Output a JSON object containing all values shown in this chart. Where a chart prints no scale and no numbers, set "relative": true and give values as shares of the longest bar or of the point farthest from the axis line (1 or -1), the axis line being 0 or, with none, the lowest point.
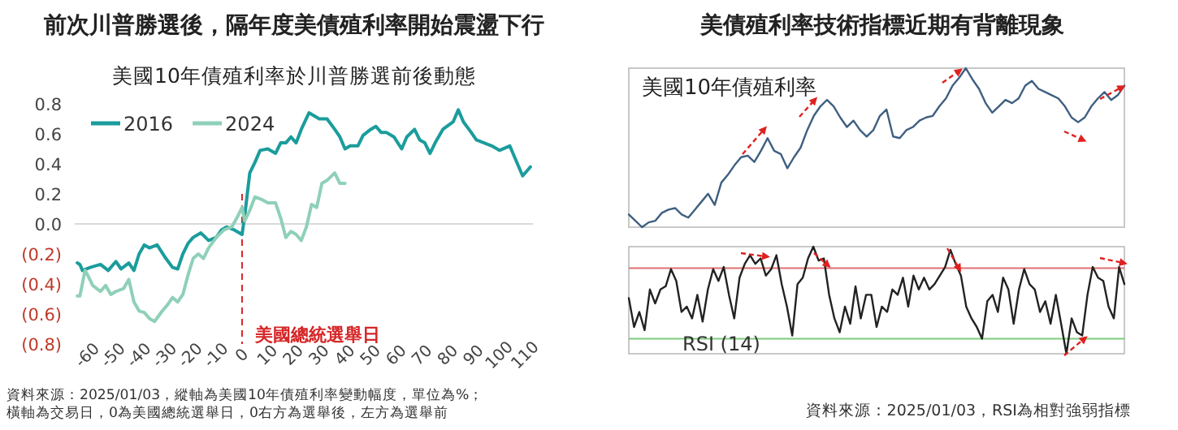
{
  "chart_data": [
    {
      "type": "line",
      "title": "前次川普勝選後，隔年度美債殖利率開始震盪下行",
      "subtitle": "美國10年債殖利率於川普勝選前後動態",
      "xlim": [
        -65,
        113
      ],
      "xticks": [
        -60,
        -50,
        -40,
        -30,
        -20,
        -10,
        0,
        10,
        20,
        30,
        40,
        50,
        60,
        70,
        80,
        90,
        100,
        110
      ],
      "ylim": [
        -0.8,
        0.8
      ],
      "yticks": [
        {
          "value": -0.8,
          "label": "(0.8)"
        },
        {
          "value": -0.6,
          "label": "(0.6)"
        },
        {
          "value": -0.4,
          "label": "(0.4)"
        },
        {
          "value": -0.2,
          "label": "(0.2)"
        },
        {
          "value": 0,
          "label": "0.0"
        },
        {
          "value": 0.2,
          "label": "0.2"
        },
        {
          "value": 0.4,
          "label": "0.4"
        },
        {
          "value": 0.6,
          "label": "0.6"
        },
        {
          "value": 0.8,
          "label": "0.8"
        }
      ],
      "legend": "top left",
      "series": [
        {
          "name": "2016",
          "color": "#1b9c9c",
          "x": [
            -64,
            -63,
            -62,
            -59,
            -55,
            -52,
            -49,
            -47,
            -44,
            -42,
            -40,
            -38,
            -36,
            -33,
            -30,
            -27,
            -25,
            -23,
            -21,
            -19,
            -16,
            -13,
            -10,
            -8,
            -6,
            -3,
            0,
            1,
            3,
            5,
            7,
            10,
            13,
            15,
            17,
            19,
            21,
            23,
            26,
            28,
            30,
            33,
            36,
            38,
            40,
            42,
            45,
            47,
            50,
            52,
            54,
            56,
            59,
            62,
            64,
            67,
            69,
            71,
            73,
            75,
            78,
            82,
            84,
            86,
            89,
            91,
            94,
            97,
            100,
            104,
            107,
            109,
            112
          ],
          "values": [
            -0.26,
            -0.27,
            -0.31,
            -0.29,
            -0.27,
            -0.31,
            -0.25,
            -0.3,
            -0.26,
            -0.31,
            -0.2,
            -0.14,
            -0.16,
            -0.14,
            -0.22,
            -0.29,
            -0.3,
            -0.2,
            -0.13,
            -0.09,
            -0.06,
            -0.11,
            -0.09,
            -0.04,
            -0.02,
            -0.04,
            -0.07,
            0.05,
            0.34,
            0.41,
            0.49,
            0.5,
            0.47,
            0.54,
            0.54,
            0.58,
            0.54,
            0.63,
            0.74,
            0.72,
            0.7,
            0.7,
            0.63,
            0.58,
            0.5,
            0.52,
            0.52,
            0.59,
            0.63,
            0.65,
            0.61,
            0.61,
            0.58,
            0.5,
            0.58,
            0.63,
            0.56,
            0.54,
            0.47,
            0.54,
            0.63,
            0.68,
            0.76,
            0.68,
            0.61,
            0.56,
            0.54,
            0.52,
            0.49,
            0.52,
            0.4,
            0.32,
            0.38
          ]
        },
        {
          "name": "2024",
          "color": "#8fd0b8",
          "x": [
            -64,
            -63,
            -61,
            -60,
            -58,
            -55,
            -53,
            -51,
            -49,
            -46,
            -44,
            -42,
            -40,
            -38,
            -36,
            -34,
            -31,
            -29,
            -27,
            -25,
            -23,
            -21,
            -19,
            -17,
            -15,
            -13,
            -10,
            -7,
            -4,
            -2,
            0,
            1,
            3,
            5,
            8,
            10,
            13,
            15,
            17,
            19,
            21,
            23,
            25,
            27,
            29,
            31,
            33,
            36,
            38,
            40
          ],
          "values": [
            -0.48,
            -0.48,
            -0.31,
            -0.34,
            -0.41,
            -0.45,
            -0.41,
            -0.47,
            -0.45,
            -0.43,
            -0.37,
            -0.52,
            -0.58,
            -0.59,
            -0.63,
            -0.65,
            -0.58,
            -0.54,
            -0.49,
            -0.52,
            -0.47,
            -0.34,
            -0.23,
            -0.2,
            -0.23,
            -0.16,
            -0.09,
            -0.04,
            -0.02,
            0.04,
            0.11,
            0.02,
            0.09,
            0.18,
            0.16,
            0.14,
            0.14,
            0.04,
            -0.09,
            -0.05,
            -0.07,
            -0.11,
            -0.02,
            0.13,
            0.11,
            0.27,
            0.29,
            0.34,
            0.27,
            0.27
          ]
        }
      ],
      "ref_lines": [
        {
          "axis": "y",
          "value": 0,
          "color": "#d9d9d9"
        },
        {
          "axis": "x",
          "value": 0,
          "label": "美國總統選舉日",
          "color": "#d62728",
          "line_style": "dashed"
        }
      ],
      "annotations": [
        "資料來源：2025/01/03，縱軸為美國10年債殖利率變動幅度，單位為%；橫軸為交易日，0為美國總統選舉日，0右方為選舉後，左方為選舉前"
      ]
    },
    {
      "type": "line",
      "title": "美債殖利率技術指標近期有背離現象",
      "relative": true,
      "categories": [
        null,
        null,
        null,
        null,
        null,
        null,
        null,
        null,
        null,
        null,
        null,
        null,
        null,
        null,
        null,
        null,
        null,
        null,
        null,
        null,
        null,
        null,
        null,
        null,
        null,
        null,
        null,
        null,
        null,
        null,
        null,
        null,
        null,
        null,
        null,
        null,
        null,
        null,
        null,
        null,
        null,
        null,
        null,
        null,
        null,
        null,
        null,
        null,
        null,
        null,
        null,
        null,
        null,
        null,
        null,
        null,
        null,
        null,
        null,
        null,
        null,
        null,
        null,
        null,
        null,
        null,
        null,
        null,
        null,
        null,
        null,
        null,
        null,
        null,
        null,
        null
      ],
      "series": [
        {
          "color": "#3e5f80",
          "values": [
            0.08,
            0.04,
            0,
            0.03,
            0.04,
            0.09,
            0.11,
            0.12,
            0.08,
            0.06,
            0.11,
            0.16,
            0.21,
            0.14,
            0.28,
            0.33,
            0.39,
            0.44,
            0.45,
            0.41,
            0.48,
            0.56,
            0.48,
            0.46,
            0.37,
            0.44,
            0.5,
            0.61,
            0.7,
            0.76,
            0.8,
            0.76,
            0.69,
            0.63,
            0.67,
            0.61,
            0.57,
            0.61,
            0.7,
            0.74,
            0.57,
            0.56,
            0.61,
            0.63,
            0.67,
            0.69,
            0.7,
            0.76,
            0.81,
            0.89,
            0.94,
            1,
            0.93,
            0.87,
            0.78,
            0.72,
            0.76,
            0.8,
            0.78,
            0.81,
            0.89,
            0.92,
            0.87,
            0.85,
            0.83,
            0.81,
            0.76,
            0.69,
            0.66,
            0.69,
            0.76,
            0.81,
            0.85,
            0.8,
            0.83,
            0.89
          ]
        }
      ],
      "annotations": [
        "美國10年債殖利率"
      ]
    },
    {
      "type": "line",
      "relative": true,
      "categories": [
        null,
        null,
        null,
        null,
        null,
        null,
        null,
        null,
        null,
        null,
        null,
        null,
        null,
        null,
        null,
        null,
        null,
        null,
        null,
        null,
        null,
        null,
        null,
        null,
        null,
        null,
        null,
        null,
        null,
        null,
        null,
        null,
        null,
        null,
        null,
        null,
        null,
        null,
        null,
        null,
        null,
        null,
        null,
        null,
        null,
        null,
        null,
        null,
        null,
        null,
        null,
        null,
        null,
        null,
        null,
        null,
        null,
        null,
        null,
        null,
        null,
        null,
        null,
        null,
        null,
        null,
        null,
        null,
        null,
        null,
        null,
        null,
        null,
        null,
        null,
        null,
        null,
        null,
        null,
        null,
        null,
        null,
        null,
        null,
        null,
        null,
        null,
        null,
        null,
        null,
        null,
        null,
        null,
        null,
        null
      ],
      "series": [
        {
          "color": "#222222",
          "values": [
            0.52,
            0.25,
            0.39,
            0.22,
            0.6,
            0.47,
            0.6,
            0.63,
            0.79,
            0.68,
            0.39,
            0.44,
            0.33,
            0.55,
            0.3,
            0.6,
            0.79,
            0.68,
            0.81,
            0.55,
            0.33,
            0.71,
            0.84,
            0.92,
            0.84,
            0.89,
            0.73,
            0.79,
            0.92,
            0.65,
            0.44,
            0.17,
            0.65,
            0.71,
            0.89,
            1,
            0.87,
            0.89,
            0.55,
            0.33,
            0.2,
            0.44,
            0.28,
            0.63,
            0.33,
            0.55,
            0.55,
            0.25,
            0.44,
            0.39,
            0.6,
            0.55,
            0.71,
            0.44,
            0.73,
            0.6,
            0.71,
            0.6,
            0.65,
            0.73,
            0.81,
            0.97,
            0.84,
            0.73,
            0.44,
            0.33,
            0.25,
            0.14,
            0.49,
            0.55,
            0.39,
            0.71,
            0.6,
            0.28,
            0.6,
            0.79,
            0.65,
            0.6,
            0.39,
            0.49,
            0.28,
            0.55,
            0.28,
            0,
            0.33,
            0.2,
            0.17,
            0.55,
            0.81,
            0.71,
            0.68,
            0.44,
            0.33,
            0.81,
            0.65
          ]
        }
      ],
      "ref_lines": [
        {
          "axis": "y",
          "value": 0.8,
          "color": "#e07070"
        },
        {
          "axis": "y",
          "value": 0.14,
          "color": "#7ccc7c"
        }
      ],
      "annotations": [
        "RSI (14)",
        "資料來源：2025/01/03，RSI為相對強弱指標"
      ]
    }
  ]
}
